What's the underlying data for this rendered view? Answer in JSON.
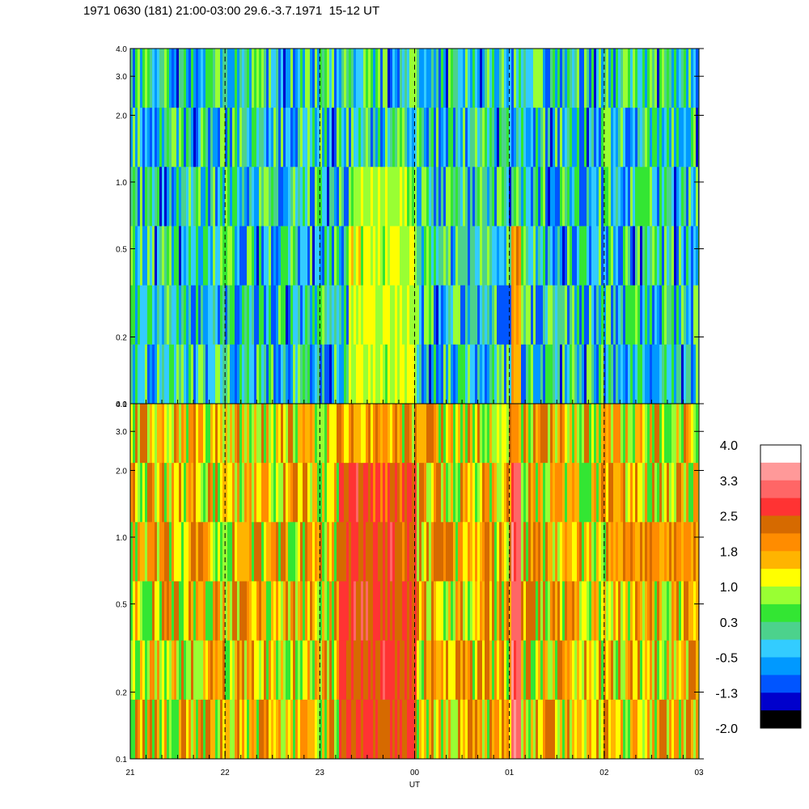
{
  "title": "1971 0630 (181) 21:00-03:00 29.6.-3.7.1971  15-12 UT",
  "chart_data": [
    {
      "type": "heatmap",
      "panel": "top",
      "x_tick_labels": [
        "21",
        "22",
        "23",
        "00",
        "01",
        "02",
        "03"
      ],
      "x_range_hours": [
        21,
        27
      ],
      "y_scale": "log",
      "y_range": [
        0.1,
        4.0
      ],
      "y_tick_labels": [
        "4.0",
        "3.0",
        "2.0",
        "1.0",
        "0.5",
        "0.2",
        "0.1"
      ],
      "y_tick_values": [
        4.0,
        3.0,
        2.0,
        1.0,
        0.5,
        0.2,
        0.1
      ],
      "dominant_level_range": [
        -1.3,
        1.0
      ],
      "features": [
        {
          "label": "elevated band",
          "x_start": 23.3,
          "x_end": 24.0,
          "y_low": 0.1,
          "y_high": 1.4,
          "level": 1.0
        },
        {
          "label": "narrow burst",
          "x_start": 25.0,
          "x_end": 25.1,
          "y_low": 0.1,
          "y_high": 0.8,
          "level": 1.8
        }
      ],
      "vertical_dashed_lines": [
        22,
        23,
        24,
        25,
        26
      ]
    },
    {
      "type": "heatmap",
      "panel": "bottom",
      "x_tick_labels": [
        "21",
        "22",
        "23",
        "00",
        "01",
        "02",
        "03"
      ],
      "x_label": "UT",
      "x_range_hours": [
        21,
        27
      ],
      "y_scale": "log",
      "y_range": [
        0.1,
        4.0
      ],
      "y_tick_labels": [
        "4.0",
        "3.0",
        "2.0",
        "1.0",
        "0.5",
        "0.2",
        "0.1"
      ],
      "y_tick_values": [
        4.0,
        3.0,
        2.0,
        1.0,
        0.5,
        0.2,
        0.1
      ],
      "dominant_level_range": [
        0.3,
        2.5
      ],
      "features": [
        {
          "label": "intense band",
          "x_start": 23.2,
          "x_end": 24.0,
          "y_low": 0.1,
          "y_high": 2.0,
          "level": 2.5
        },
        {
          "label": "narrow burst",
          "x_start": 25.0,
          "x_end": 25.1,
          "y_low": 0.1,
          "y_high": 2.0,
          "level": 3.0
        },
        {
          "label": "rising band",
          "x_start": 26.0,
          "x_end": 27.0,
          "y_low": 0.5,
          "y_high": 1.1,
          "level": 1.8
        }
      ],
      "vertical_dashed_lines": [
        22,
        23,
        24,
        25,
        26
      ]
    }
  ],
  "colorbar": {
    "labels": [
      "4.0",
      "3.3",
      "2.5",
      "1.8",
      "1.0",
      "0.3",
      "-0.5",
      "-1.3",
      "-2.0"
    ],
    "colors": [
      "#ffffff",
      "#ff9999",
      "#ff6666",
      "#ff3333",
      "#d66a00",
      "#ff8c00",
      "#ffb400",
      "#ffff00",
      "#99ff33",
      "#33e633",
      "#4cd28c",
      "#33ccff",
      "#0099ff",
      "#0055ff",
      "#0000cc",
      "#000000"
    ]
  }
}
